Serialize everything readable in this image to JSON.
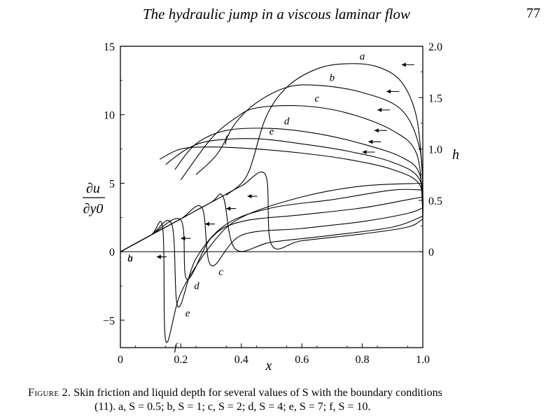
{
  "page": {
    "header_title": "The hydraulic jump in a viscous laminar flow",
    "page_number": "77"
  },
  "figure": {
    "caption_label": "Figure 2.",
    "caption_line1": "Skin friction and liquid depth for several values of S with the boundary conditions",
    "caption_line2": "(11). a, S = 0.5; b, S = 1; c, S = 2; d, S = 4; e, S = 7; f, S = 10."
  },
  "chart_data": {
    "type": "line",
    "xlabel": "x",
    "ylabel_left_num": "∂u",
    "ylabel_left_den": "∂y0",
    "ylabel_right": "h",
    "xlim": [
      0,
      1
    ],
    "ylim_left": [
      -7,
      15
    ],
    "ylim_right": [
      0,
      2
    ],
    "xticks": [
      "0",
      "0.2",
      "0.4",
      "0.6",
      "0.8",
      "1.0"
    ],
    "yticks_left": [
      "−5",
      "0",
      "5",
      "10",
      "15"
    ],
    "yticks_right": [
      "0",
      "0.5",
      "1.0",
      "1.5",
      "2.0"
    ],
    "series": [
      {
        "name": "a",
        "skin_friction": [
          [
            0,
            0
          ],
          [
            0.1,
            1.2
          ],
          [
            0.2,
            2.4
          ],
          [
            0.3,
            3.6
          ],
          [
            0.4,
            4.8
          ],
          [
            0.48,
            5.6
          ],
          [
            0.5,
            0.5
          ],
          [
            0.6,
            0.8
          ],
          [
            0.8,
            1.3
          ],
          [
            0.95,
            1.8
          ],
          [
            1.0,
            2.4
          ]
        ],
        "depth": [
          [
            0.35,
            0.55
          ],
          [
            0.42,
            0.75
          ],
          [
            0.48,
            1.3
          ],
          [
            0.55,
            1.6
          ],
          [
            0.65,
            1.78
          ],
          [
            0.75,
            1.83
          ],
          [
            0.85,
            1.8
          ],
          [
            0.93,
            1.65
          ],
          [
            0.98,
            1.3
          ],
          [
            1.0,
            0.7
          ]
        ]
      },
      {
        "name": "b",
        "skin_friction": [
          [
            0,
            0
          ],
          [
            0.1,
            1.2
          ],
          [
            0.2,
            2.4
          ],
          [
            0.3,
            3.6
          ],
          [
            0.34,
            4.0
          ],
          [
            0.38,
            0.2
          ],
          [
            0.5,
            0.7
          ],
          [
            0.7,
            1.2
          ],
          [
            0.9,
            1.8
          ],
          [
            1.0,
            2.6
          ]
        ],
        "depth": [
          [
            0.25,
            0.75
          ],
          [
            0.32,
            0.95
          ],
          [
            0.38,
            1.25
          ],
          [
            0.45,
            1.45
          ],
          [
            0.55,
            1.6
          ],
          [
            0.65,
            1.62
          ],
          [
            0.8,
            1.55
          ],
          [
            0.93,
            1.38
          ],
          [
            0.99,
            1.0
          ],
          [
            1.0,
            0.5
          ]
        ]
      },
      {
        "name": "c",
        "skin_friction": [
          [
            0,
            0
          ],
          [
            0.1,
            1.2
          ],
          [
            0.2,
            2.4
          ],
          [
            0.27,
            3.2
          ],
          [
            0.3,
            -1.0
          ],
          [
            0.4,
            1.2
          ],
          [
            0.6,
            1.7
          ],
          [
            0.8,
            2.2
          ],
          [
            0.95,
            2.8
          ],
          [
            1.0,
            3.2
          ]
        ],
        "depth": [
          [
            0.2,
            0.7
          ],
          [
            0.3,
            1.1
          ],
          [
            0.38,
            1.3
          ],
          [
            0.45,
            1.4
          ],
          [
            0.6,
            1.42
          ],
          [
            0.75,
            1.35
          ],
          [
            0.9,
            1.18
          ],
          [
            0.98,
            0.95
          ],
          [
            1.0,
            0.4
          ]
        ]
      },
      {
        "name": "d",
        "skin_friction": [
          [
            0,
            0
          ],
          [
            0.1,
            1.2
          ],
          [
            0.2,
            2.3
          ],
          [
            0.22,
            -2.0
          ],
          [
            0.3,
            1.0
          ],
          [
            0.4,
            2.2
          ],
          [
            0.6,
            2.7
          ],
          [
            0.8,
            3.2
          ],
          [
            0.95,
            3.8
          ],
          [
            1.0,
            4.0
          ]
        ],
        "depth": [
          [
            0.18,
            0.8
          ],
          [
            0.25,
            1.05
          ],
          [
            0.35,
            1.18
          ],
          [
            0.5,
            1.2
          ],
          [
            0.65,
            1.15
          ],
          [
            0.8,
            1.05
          ],
          [
            0.93,
            0.92
          ],
          [
            0.99,
            0.75
          ],
          [
            1.0,
            0.3
          ]
        ]
      },
      {
        "name": "e",
        "skin_friction": [
          [
            0,
            0
          ],
          [
            0.1,
            1.2
          ],
          [
            0.17,
            2.0
          ],
          [
            0.19,
            -4.0
          ],
          [
            0.25,
            -0.5
          ],
          [
            0.35,
            2.0
          ],
          [
            0.5,
            3.2
          ],
          [
            0.7,
            3.8
          ],
          [
            0.9,
            4.5
          ],
          [
            1.0,
            4.5
          ]
        ],
        "depth": [
          [
            0.15,
            0.85
          ],
          [
            0.22,
            1.0
          ],
          [
            0.3,
            1.08
          ],
          [
            0.45,
            1.1
          ],
          [
            0.6,
            1.05
          ],
          [
            0.75,
            0.98
          ],
          [
            0.9,
            0.87
          ],
          [
            0.99,
            0.7
          ],
          [
            1.0,
            0.3
          ]
        ]
      },
      {
        "name": "f",
        "skin_friction": [
          [
            0,
            0
          ],
          [
            0.1,
            1.2
          ],
          [
            0.14,
            1.7
          ],
          [
            0.15,
            -6.5
          ],
          [
            0.2,
            -3.0
          ],
          [
            0.3,
            0.5
          ],
          [
            0.4,
            2.5
          ],
          [
            0.6,
            4.0
          ],
          [
            0.8,
            4.8
          ],
          [
            1.0,
            5.0
          ]
        ],
        "depth": [
          [
            0.13,
            0.9
          ],
          [
            0.2,
            1.0
          ],
          [
            0.3,
            1.02
          ],
          [
            0.45,
            1.0
          ],
          [
            0.6,
            0.96
          ],
          [
            0.75,
            0.9
          ],
          [
            0.9,
            0.8
          ],
          [
            0.99,
            0.65
          ],
          [
            1.0,
            0.3
          ]
        ]
      }
    ]
  }
}
